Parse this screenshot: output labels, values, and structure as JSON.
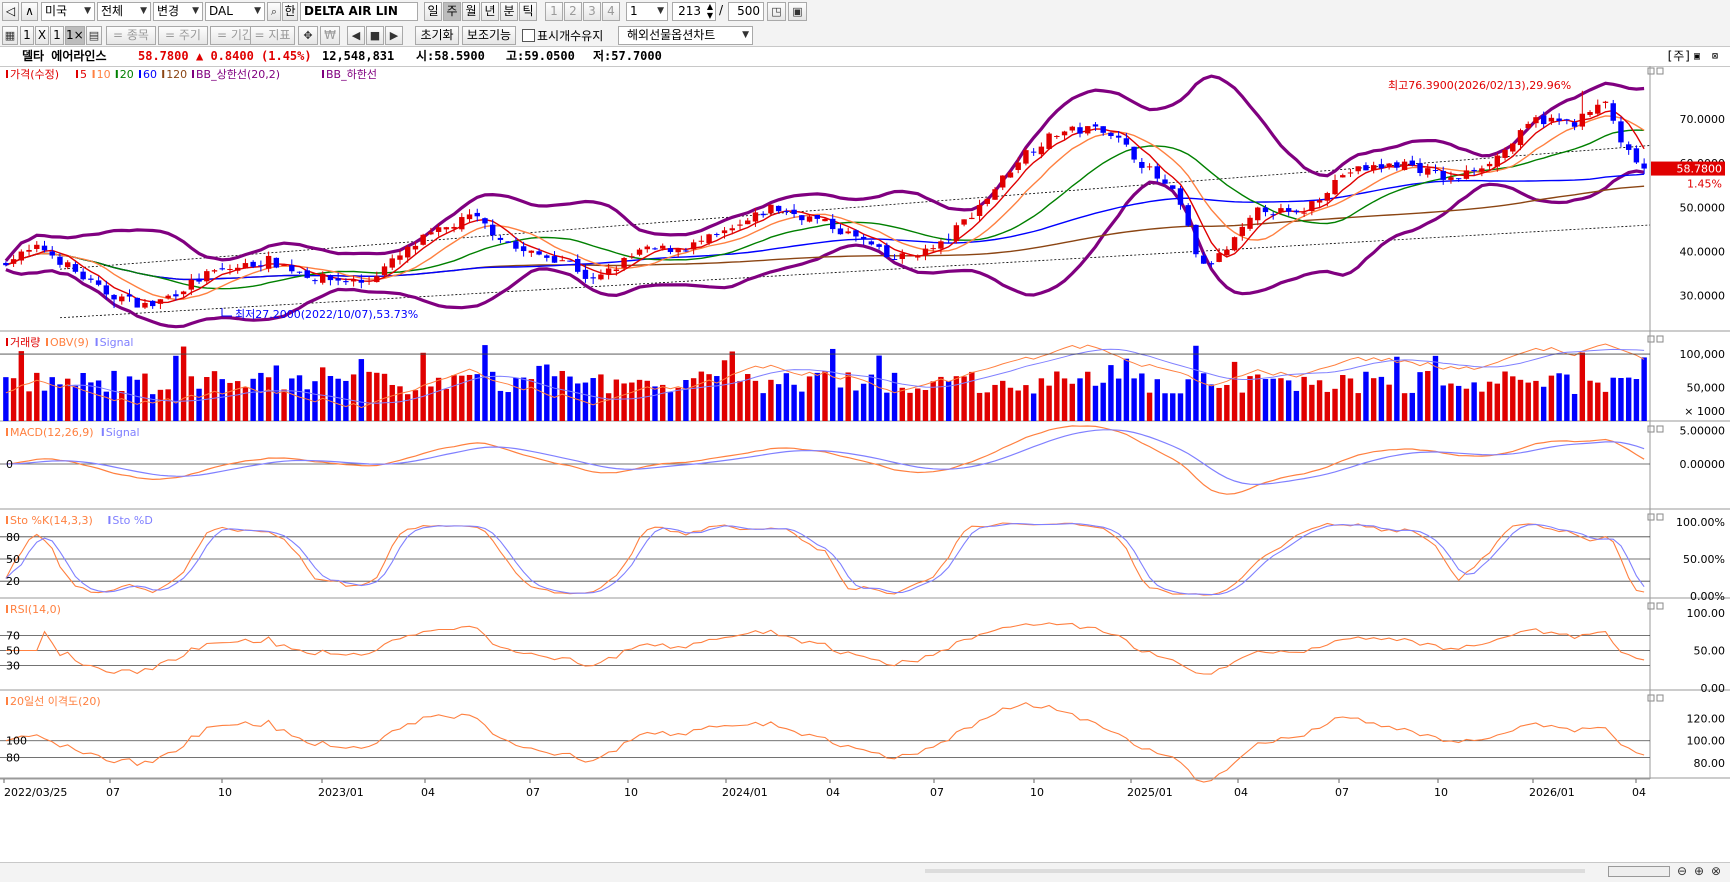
{
  "toolbar1": {
    "prev_btn": "◁",
    "up_btn": "∧",
    "market": "미국",
    "scope": "전체",
    "change": "변경",
    "ticker": "DAL",
    "han_btn": "한",
    "name": "DELTA AIR LIN",
    "periods": [
      "일",
      "주",
      "월",
      "년",
      "분",
      "틱"
    ],
    "active_period": "주",
    "nums": [
      "1",
      "2",
      "3",
      "4"
    ],
    "interval": "1",
    "count": "213",
    "sep": "/",
    "max_count": "500"
  },
  "toolbar2": {
    "layout_btns": [
      "1",
      "X",
      "1",
      "1×1"
    ],
    "stock_btn": "= 종목",
    "cycle_btn": "= 주기",
    "period_btn": "= 기간",
    "indicator_btn": "= 지표",
    "won_btn": "₩",
    "reset_btn": "초기화",
    "aux_btn": "보조기능",
    "keep_label": "표시개수유지",
    "keep_checked": false,
    "overseas": "해외선물옵션차트"
  },
  "info": {
    "name": "델타 에어라인스",
    "price": "58.7800",
    "change": "▲ 0.8400 (1.45%)",
    "volume": "12,548,831",
    "open": "시:58.5900",
    "high": "고:59.0500",
    "low": "저:57.7000",
    "right_label": "[주]"
  },
  "price_panel": {
    "legend": [
      {
        "text": "가격(수정)",
        "color": "#e00000"
      },
      {
        "text": "5",
        "color": "#e00000"
      },
      {
        "text": "10",
        "color": "#ff8040"
      },
      {
        "text": "20",
        "color": "#008000"
      },
      {
        "text": "60",
        "color": "#0000ff"
      },
      {
        "text": "120",
        "color": "#8b4513"
      },
      {
        "text": "BB_상한선(20,2)",
        "color": "#800080"
      },
      {
        "text": "BB_하한선",
        "color": "#800080"
      }
    ],
    "axis": [
      "70.0000",
      "60.0000",
      "50.0000",
      "40.0000",
      "30.0000"
    ],
    "last_price": "58.7800",
    "last_pct": "1.45%",
    "high_note": "최고76.3900(2026/02/13),29.96%",
    "low_note": "최저27.2000(2022/10/07),53.73%"
  },
  "volume_panel": {
    "legend": [
      {
        "text": "거래량",
        "color": "#e00000"
      },
      {
        "text": "OBV(9)",
        "color": "#ff8040"
      },
      {
        "text": "Signal",
        "color": "#8080ff"
      }
    ],
    "axis": [
      "100,000",
      "50,000",
      "× 1000"
    ]
  },
  "macd_panel": {
    "legend": [
      {
        "text": "MACD(12,26,9)",
        "color": "#ff8040"
      },
      {
        "text": "Signal",
        "color": "#8080ff"
      }
    ],
    "axis": [
      "5.00000",
      "0.00000"
    ],
    "left_label": "0"
  },
  "sto_panel": {
    "legend": [
      {
        "text": "Sto %K(14,3,3)",
        "color": "#ff8040"
      },
      {
        "text": "Sto %D",
        "color": "#8080ff"
      }
    ],
    "axis": [
      "100.00%",
      "50.00%",
      "0.00%"
    ],
    "left_labels": [
      "80",
      "50",
      "20"
    ]
  },
  "rsi_panel": {
    "legend": [
      {
        "text": "RSI(14,0)",
        "color": "#ff8040"
      }
    ],
    "axis": [
      "100.00",
      "50.00",
      "0.00"
    ],
    "left_labels": [
      "70",
      "50",
      "30"
    ]
  },
  "disparity_panel": {
    "legend": [
      {
        "text": "20일선 이격도(20)",
        "color": "#ff8040"
      }
    ],
    "axis": [
      "120.00",
      "100.00",
      "80.00"
    ],
    "left_labels": [
      "100",
      "80"
    ]
  },
  "x_axis": [
    "2022/03/25",
    "07",
    "10",
    "2023/01",
    "04",
    "07",
    "10",
    "2024/01",
    "04",
    "07",
    "10",
    "2025/01",
    "04",
    "07",
    "10",
    "2026/01",
    "04"
  ],
  "colors": {
    "up": "#e00000",
    "down": "#0000ff",
    "ma5": "#e00000",
    "ma10": "#ff8040",
    "ma20": "#008000",
    "ma60": "#0000ff",
    "ma120": "#8b4513",
    "bb": "#800080"
  }
}
